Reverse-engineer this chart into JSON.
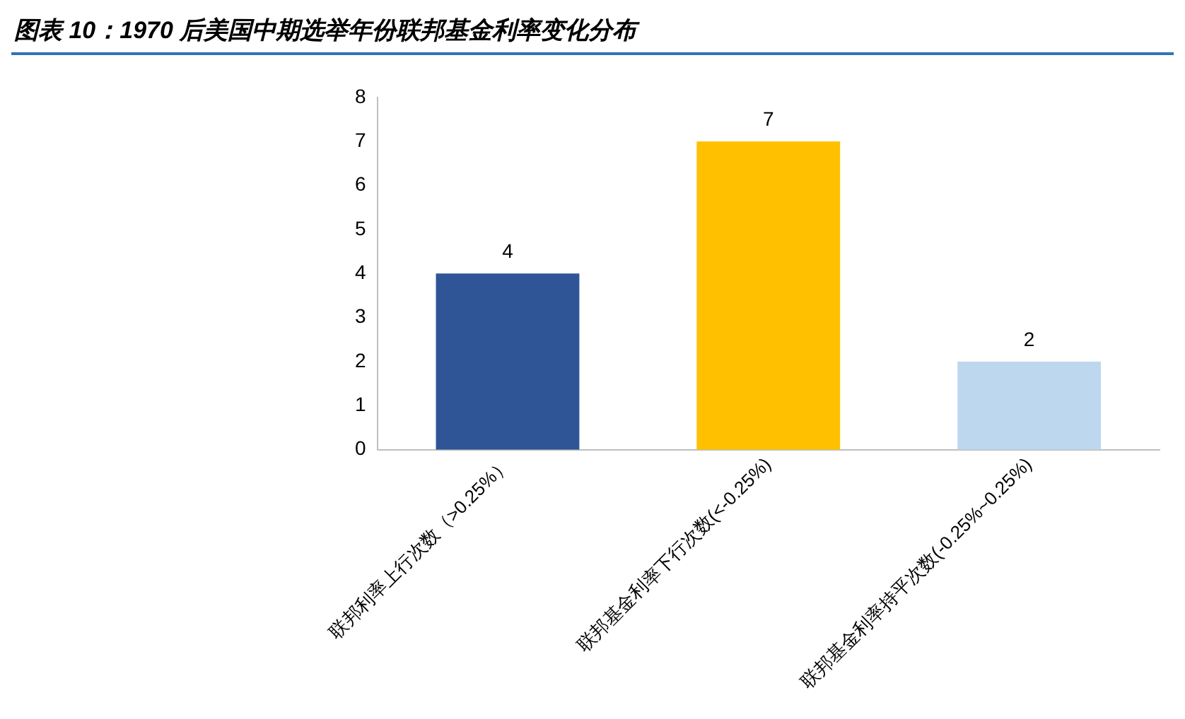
{
  "chart_data": {
    "type": "bar",
    "title": "图表 10：1970 后美国中期选举年份联邦基金利率变化分布",
    "categories": [
      "联邦利率上行次数（>0.25%）",
      "联邦基金利率下行次数(<-0.25%)",
      "联邦基金利率持平次数(-0.25%~0.25%)"
    ],
    "values": [
      4,
      7,
      2
    ],
    "colors": [
      "#2f5597",
      "#ffc000",
      "#bdd7ee"
    ],
    "ylim": [
      0,
      8
    ],
    "yticks": [
      0,
      1,
      2,
      3,
      4,
      5,
      6,
      7,
      8
    ],
    "grid": false,
    "legend": false,
    "data_labels": true
  }
}
